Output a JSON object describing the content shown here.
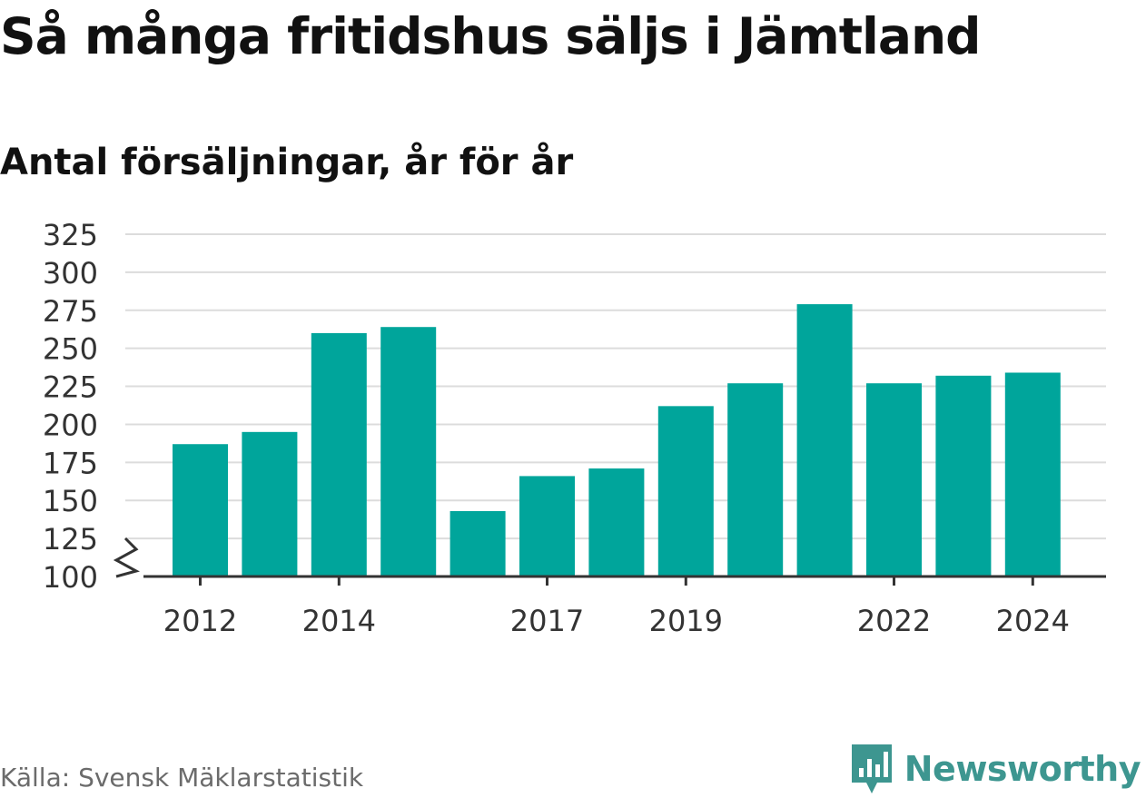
{
  "title": "Så många fritidshus säljs i Jämtland",
  "subtitle": "Antal försäljningar, år för år",
  "source": "Källa: Svensk Mäklarstatistik",
  "brand": {
    "name": "Newsworthy",
    "icon": "newsworthy-logo-icon",
    "color": "#3d9690"
  },
  "colors": {
    "bar": "#00a59b",
    "grid": "#dcdcdc",
    "axis": "#333333"
  },
  "chart_data": {
    "type": "bar",
    "categories": [
      "2012",
      "2013",
      "2014",
      "2015",
      "2016",
      "2017",
      "2018",
      "2019",
      "2020",
      "2021",
      "2022",
      "2023",
      "2024"
    ],
    "values": [
      187,
      195,
      260,
      264,
      143,
      166,
      171,
      212,
      227,
      279,
      227,
      232,
      234
    ],
    "x_tick_labels": [
      "2012",
      "2014",
      "2017",
      "2019",
      "2022",
      "2024"
    ],
    "y_ticks": [
      100,
      125,
      150,
      175,
      200,
      225,
      250,
      275,
      300,
      325
    ],
    "ylim": [
      100,
      325
    ],
    "axis_break": true,
    "grid": true
  }
}
